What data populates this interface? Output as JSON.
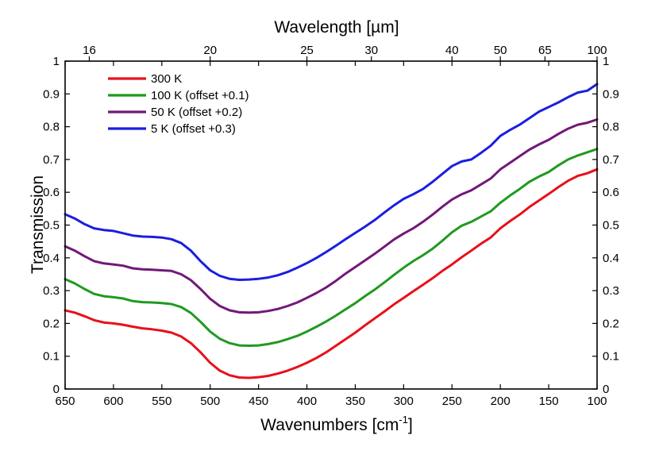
{
  "chart_data": {
    "type": "line",
    "xlabel": "Wavenumbers [cm",
    "xlabel_sup": "-1",
    "xlabel_end": "]",
    "top_xlabel": "Wavelength [µm]",
    "ylabel": "Transmission",
    "xlim": [
      650,
      100
    ],
    "ylim": [
      0,
      1
    ],
    "x_reversed": true,
    "x_ticks": [
      650,
      600,
      550,
      500,
      450,
      400,
      350,
      300,
      250,
      200,
      150,
      100
    ],
    "y_ticks": [
      0,
      0.1,
      0.2,
      0.3,
      0.4,
      0.5,
      0.6,
      0.7,
      0.8,
      0.9,
      1
    ],
    "y_tick_labels": [
      "0",
      "0.1",
      "0.2",
      "0.3",
      "0.4",
      "0.5",
      "0.6",
      "0.7",
      "0.8",
      "0.9",
      "1"
    ],
    "top_ticks": [
      16,
      20,
      25,
      30,
      40,
      50,
      65,
      100
    ],
    "grid": false,
    "legend_position": "top-left",
    "series": [
      {
        "name": "300 K",
        "color": "#e8101a",
        "x": [
          650,
          640,
          630,
          620,
          610,
          600,
          590,
          580,
          570,
          560,
          550,
          540,
          530,
          520,
          510,
          500,
          490,
          480,
          470,
          460,
          450,
          440,
          430,
          420,
          410,
          400,
          390,
          380,
          370,
          360,
          350,
          340,
          330,
          320,
          310,
          300,
          290,
          280,
          270,
          260,
          250,
          240,
          230,
          220,
          210,
          200,
          190,
          180,
          170,
          160,
          150,
          140,
          130,
          120,
          110,
          100
        ],
        "y": [
          0.24,
          0.233,
          0.222,
          0.21,
          0.203,
          0.2,
          0.196,
          0.19,
          0.185,
          0.182,
          0.178,
          0.172,
          0.16,
          0.14,
          0.112,
          0.08,
          0.056,
          0.042,
          0.035,
          0.034,
          0.036,
          0.04,
          0.047,
          0.056,
          0.067,
          0.08,
          0.095,
          0.112,
          0.132,
          0.152,
          0.172,
          0.194,
          0.215,
          0.236,
          0.258,
          0.278,
          0.298,
          0.318,
          0.338,
          0.36,
          0.38,
          0.402,
          0.422,
          0.443,
          0.462,
          0.49,
          0.512,
          0.532,
          0.555,
          0.575,
          0.595,
          0.616,
          0.635,
          0.65,
          0.658,
          0.67
        ]
      },
      {
        "name": "100 K (offset +0.1)",
        "color": "#1f9a1f",
        "x": [
          650,
          640,
          630,
          620,
          610,
          600,
          590,
          580,
          570,
          560,
          550,
          540,
          530,
          520,
          510,
          500,
          490,
          480,
          470,
          460,
          450,
          440,
          430,
          420,
          410,
          400,
          390,
          380,
          370,
          360,
          350,
          340,
          330,
          320,
          310,
          300,
          290,
          280,
          270,
          260,
          250,
          240,
          230,
          220,
          210,
          200,
          190,
          180,
          170,
          160,
          150,
          140,
          130,
          120,
          110,
          100
        ],
        "y": [
          0.335,
          0.322,
          0.305,
          0.29,
          0.283,
          0.28,
          0.276,
          0.268,
          0.265,
          0.264,
          0.262,
          0.259,
          0.25,
          0.232,
          0.205,
          0.175,
          0.153,
          0.14,
          0.133,
          0.132,
          0.133,
          0.137,
          0.143,
          0.152,
          0.162,
          0.175,
          0.19,
          0.206,
          0.224,
          0.243,
          0.262,
          0.283,
          0.303,
          0.325,
          0.348,
          0.37,
          0.39,
          0.408,
          0.428,
          0.452,
          0.478,
          0.498,
          0.51,
          0.526,
          0.542,
          0.568,
          0.59,
          0.61,
          0.632,
          0.648,
          0.662,
          0.682,
          0.7,
          0.712,
          0.722,
          0.732
        ]
      },
      {
        "name": "50 K (offset +0.2)",
        "color": "#721878",
        "x": [
          650,
          640,
          630,
          620,
          610,
          600,
          590,
          580,
          570,
          560,
          550,
          540,
          530,
          520,
          510,
          500,
          490,
          480,
          470,
          460,
          450,
          440,
          430,
          420,
          410,
          400,
          390,
          380,
          370,
          360,
          350,
          340,
          330,
          320,
          310,
          300,
          290,
          280,
          270,
          260,
          250,
          240,
          230,
          220,
          210,
          200,
          190,
          180,
          170,
          160,
          150,
          140,
          130,
          120,
          110,
          100
        ],
        "y": [
          0.435,
          0.422,
          0.405,
          0.39,
          0.383,
          0.38,
          0.376,
          0.368,
          0.365,
          0.364,
          0.362,
          0.36,
          0.35,
          0.332,
          0.305,
          0.275,
          0.253,
          0.24,
          0.234,
          0.233,
          0.234,
          0.238,
          0.244,
          0.253,
          0.264,
          0.278,
          0.293,
          0.31,
          0.33,
          0.352,
          0.372,
          0.392,
          0.412,
          0.434,
          0.456,
          0.474,
          0.49,
          0.51,
          0.532,
          0.556,
          0.578,
          0.594,
          0.606,
          0.624,
          0.642,
          0.67,
          0.69,
          0.71,
          0.73,
          0.746,
          0.76,
          0.778,
          0.794,
          0.806,
          0.812,
          0.822
        ]
      },
      {
        "name": "5 K (offset +0.3)",
        "color": "#1a1ee0",
        "x": [
          650,
          640,
          630,
          620,
          610,
          600,
          590,
          580,
          570,
          560,
          550,
          540,
          530,
          520,
          510,
          500,
          490,
          480,
          470,
          460,
          450,
          440,
          430,
          420,
          410,
          400,
          390,
          380,
          370,
          360,
          350,
          340,
          330,
          320,
          310,
          300,
          290,
          280,
          270,
          260,
          250,
          240,
          230,
          220,
          210,
          200,
          190,
          180,
          170,
          160,
          150,
          140,
          130,
          120,
          110,
          100
        ],
        "y": [
          0.533,
          0.52,
          0.503,
          0.49,
          0.485,
          0.482,
          0.475,
          0.468,
          0.465,
          0.464,
          0.462,
          0.457,
          0.445,
          0.422,
          0.39,
          0.362,
          0.345,
          0.336,
          0.333,
          0.334,
          0.336,
          0.34,
          0.347,
          0.357,
          0.37,
          0.384,
          0.4,
          0.418,
          0.437,
          0.457,
          0.476,
          0.495,
          0.515,
          0.538,
          0.56,
          0.58,
          0.594,
          0.61,
          0.632,
          0.656,
          0.68,
          0.694,
          0.7,
          0.72,
          0.742,
          0.772,
          0.79,
          0.806,
          0.826,
          0.846,
          0.86,
          0.874,
          0.89,
          0.904,
          0.91,
          0.93
        ]
      }
    ]
  }
}
